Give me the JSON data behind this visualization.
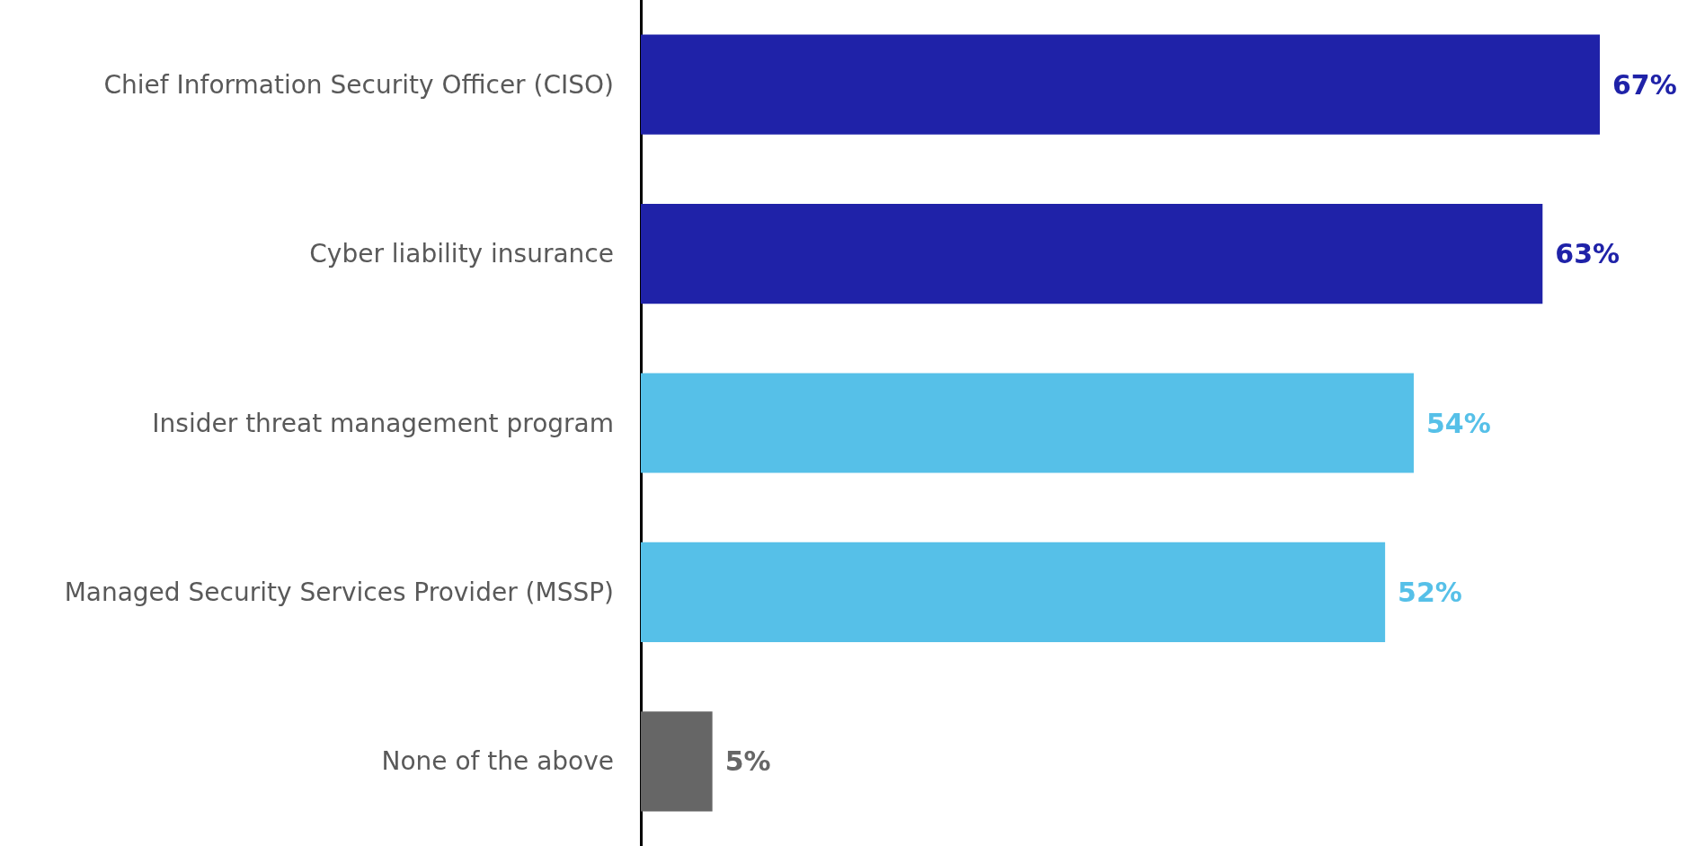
{
  "chart_data": {
    "type": "bar",
    "orientation": "horizontal",
    "categories": [
      "Chief Information Security Officer (CISO)",
      "Cyber liability insurance",
      "Insider threat management program",
      "Managed Security Services Provider (MSSP)",
      "None of the above"
    ],
    "values": [
      67,
      63,
      54,
      52,
      5
    ],
    "colors": [
      "#1f22a8",
      "#1f22a8",
      "#56c0e8",
      "#56c0e8",
      "#666666"
    ],
    "value_labels": [
      "67%",
      "63%",
      "54%",
      "52%",
      "5%"
    ]
  }
}
